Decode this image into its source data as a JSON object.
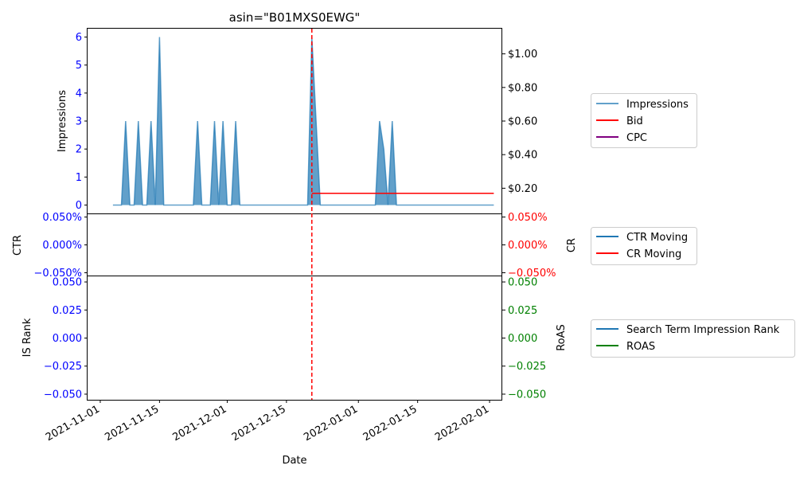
{
  "title": "asin=\"B01MXS0EWG\"",
  "xlabel": "Date",
  "colors": {
    "blue": "#0000ff",
    "red": "#ff0000",
    "green": "#008000",
    "impressions": "#1f77b4",
    "bid": "#ff0000",
    "cpc": "#800080",
    "ctr": "#1f77b4",
    "cr": "#ff0000",
    "rank": "#1f77b4",
    "roas": "#008000"
  },
  "x_ticks": [
    "2021-11-01",
    "2021-11-15",
    "2021-12-01",
    "2021-12-15",
    "2022-01-01",
    "2022-01-15",
    "2022-02-01"
  ],
  "panels": {
    "top": {
      "ylabel": "Impressions",
      "left_ticks": [
        "0",
        "1",
        "2",
        "3",
        "4",
        "5",
        "6"
      ],
      "right_ticks": [
        "$0.20",
        "$0.40",
        "$0.60",
        "$0.80",
        "$1.00"
      ],
      "legend": [
        "Impressions",
        "Bid",
        "CPC"
      ]
    },
    "middle": {
      "ylabel_left": "CTR",
      "ylabel_right": "CR",
      "left_ticks": [
        "0.050%",
        "0.000%",
        "−0.050%"
      ],
      "right_ticks": [
        "0.050%",
        "0.000%",
        "−0.050%"
      ],
      "legend": [
        "CTR Moving",
        "CR Moving"
      ]
    },
    "bottom": {
      "ylabel_left": "IS Rank",
      "ylabel_right": "RoAS",
      "left_ticks": [
        "0.050",
        "0.025",
        "0.000",
        "−0.025",
        "−0.050"
      ],
      "right_ticks": [
        "0.050",
        "0.025",
        "0.000",
        "−0.025",
        "−0.050"
      ],
      "legend": [
        "Search Term Impression Rank",
        "ROAS"
      ]
    }
  },
  "chart_data": {
    "type": "area",
    "x_axis": {
      "type": "date",
      "range": [
        "2021-10-29",
        "2022-02-04"
      ]
    },
    "impressions": {
      "name": "Impressions",
      "y_range": [
        -0.3,
        6.3
      ],
      "points": [
        [
          "2021-11-04",
          0
        ],
        [
          "2021-11-06",
          0
        ],
        [
          "2021-11-07",
          3
        ],
        [
          "2021-11-08",
          0
        ],
        [
          "2021-11-09",
          0
        ],
        [
          "2021-11-10",
          3
        ],
        [
          "2021-11-11",
          0
        ],
        [
          "2021-11-12",
          0
        ],
        [
          "2021-11-13",
          3
        ],
        [
          "2021-11-14",
          0
        ],
        [
          "2021-11-15",
          6
        ],
        [
          "2021-11-16",
          0
        ],
        [
          "2021-11-23",
          0
        ],
        [
          "2021-11-24",
          3
        ],
        [
          "2021-11-25",
          0
        ],
        [
          "2021-11-27",
          0
        ],
        [
          "2021-11-28",
          3
        ],
        [
          "2021-11-29",
          0
        ],
        [
          "2021-11-30",
          3
        ],
        [
          "2021-12-01",
          0
        ],
        [
          "2021-12-02",
          0
        ],
        [
          "2021-12-03",
          3
        ],
        [
          "2021-12-04",
          0
        ],
        [
          "2021-12-20",
          0
        ],
        [
          "2021-12-21",
          6
        ],
        [
          "2021-12-22",
          3
        ],
        [
          "2021-12-23",
          0
        ],
        [
          "2022-01-05",
          0
        ],
        [
          "2022-01-06",
          3
        ],
        [
          "2022-01-07",
          2
        ],
        [
          "2022-01-08",
          0
        ],
        [
          "2022-01-09",
          3
        ],
        [
          "2022-01-10",
          0
        ],
        [
          "2022-02-02",
          0
        ]
      ]
    },
    "bid": {
      "name": "Bid",
      "y_range": [
        0.05,
        1.15
      ],
      "points": [
        [
          "2021-12-21",
          0.17
        ],
        [
          "2022-02-02",
          0.17
        ]
      ]
    },
    "cpc": {
      "name": "CPC",
      "points": []
    },
    "ctr_moving": {
      "name": "CTR Moving",
      "points": []
    },
    "cr_moving": {
      "name": "CR Moving",
      "points": []
    },
    "search_term_impression_rank": {
      "name": "Search Term Impression Rank",
      "points": []
    },
    "roas": {
      "name": "ROAS",
      "points": []
    },
    "vline": {
      "date": "2021-12-21",
      "style": "dashed",
      "color": "#ff0000"
    },
    "grid": false,
    "legend_placement": "right"
  }
}
